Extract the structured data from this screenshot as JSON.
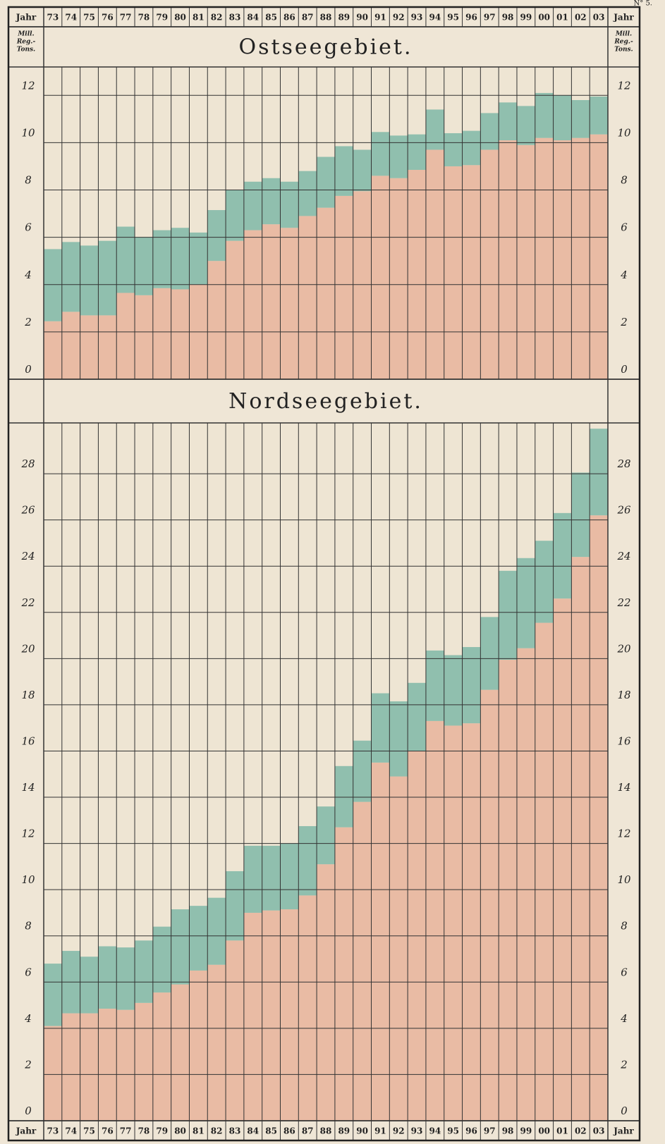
{
  "page_number": "N° 5.",
  "chart_data": [
    {
      "type": "bar",
      "stacked": true,
      "title": "Ostseegebiet.",
      "x_label": "Jahr",
      "y_label": [
        "Mill.",
        "Reg.-",
        "Tons."
      ],
      "categories": [
        "73",
        "74",
        "75",
        "76",
        "77",
        "78",
        "79",
        "80",
        "81",
        "82",
        "83",
        "84",
        "85",
        "86",
        "87",
        "88",
        "89",
        "90",
        "91",
        "92",
        "93",
        "94",
        "95",
        "96",
        "97",
        "98",
        "99",
        "00",
        "01",
        "02",
        "03"
      ],
      "series": [
        {
          "color": "#e9bba4",
          "values": [
            2.45,
            2.85,
            2.7,
            2.7,
            3.65,
            3.55,
            3.85,
            3.8,
            4.0,
            5.0,
            5.85,
            6.3,
            6.55,
            6.4,
            6.9,
            7.25,
            7.75,
            7.95,
            8.6,
            8.5,
            8.85,
            9.7,
            9.0,
            9.05,
            9.7,
            10.1,
            9.9,
            10.2,
            10.1,
            10.2,
            10.35
          ]
        },
        {
          "color": "#90bfae",
          "values": [
            3.05,
            2.95,
            2.95,
            3.15,
            2.8,
            2.45,
            2.45,
            2.6,
            2.2,
            2.15,
            2.15,
            2.05,
            1.95,
            1.95,
            1.9,
            2.15,
            2.1,
            1.75,
            1.85,
            1.8,
            1.5,
            1.7,
            1.4,
            1.45,
            1.55,
            1.6,
            1.65,
            1.9,
            1.9,
            1.6,
            1.6
          ]
        }
      ],
      "ylim": [
        0,
        13.2
      ],
      "yticks": [
        0,
        2,
        4,
        6,
        8,
        10,
        12
      ],
      "grid": true
    },
    {
      "type": "bar",
      "stacked": true,
      "title": "Nordseegebiet.",
      "x_label": "Jahr",
      "categories": [
        "73",
        "74",
        "75",
        "76",
        "77",
        "78",
        "79",
        "80",
        "81",
        "82",
        "83",
        "84",
        "85",
        "86",
        "87",
        "88",
        "89",
        "90",
        "91",
        "92",
        "93",
        "94",
        "95",
        "96",
        "97",
        "98",
        "99",
        "00",
        "01",
        "02",
        "03"
      ],
      "series": [
        {
          "color": "#e9bba4",
          "values": [
            4.1,
            4.65,
            4.65,
            4.85,
            4.8,
            5.1,
            5.55,
            5.9,
            6.5,
            6.75,
            7.8,
            9.0,
            9.1,
            9.15,
            9.75,
            11.1,
            12.7,
            13.8,
            15.5,
            14.9,
            16.0,
            17.3,
            17.1,
            17.2,
            18.65,
            19.95,
            20.45,
            21.55,
            22.6,
            24.4,
            26.2
          ]
        },
        {
          "color": "#90bfae",
          "values": [
            2.7,
            2.7,
            2.45,
            2.7,
            2.7,
            2.7,
            2.85,
            3.25,
            2.8,
            2.9,
            3.0,
            2.9,
            2.8,
            2.85,
            3.0,
            2.5,
            2.65,
            2.65,
            3.0,
            3.25,
            2.95,
            3.05,
            3.05,
            3.3,
            3.15,
            3.85,
            3.9,
            3.55,
            3.7,
            3.65,
            3.75
          ]
        }
      ],
      "ylim": [
        0,
        30.2
      ],
      "yticks": [
        0,
        2,
        4,
        6,
        8,
        10,
        12,
        14,
        16,
        18,
        20,
        22,
        24,
        26,
        28
      ],
      "grid": true
    }
  ]
}
